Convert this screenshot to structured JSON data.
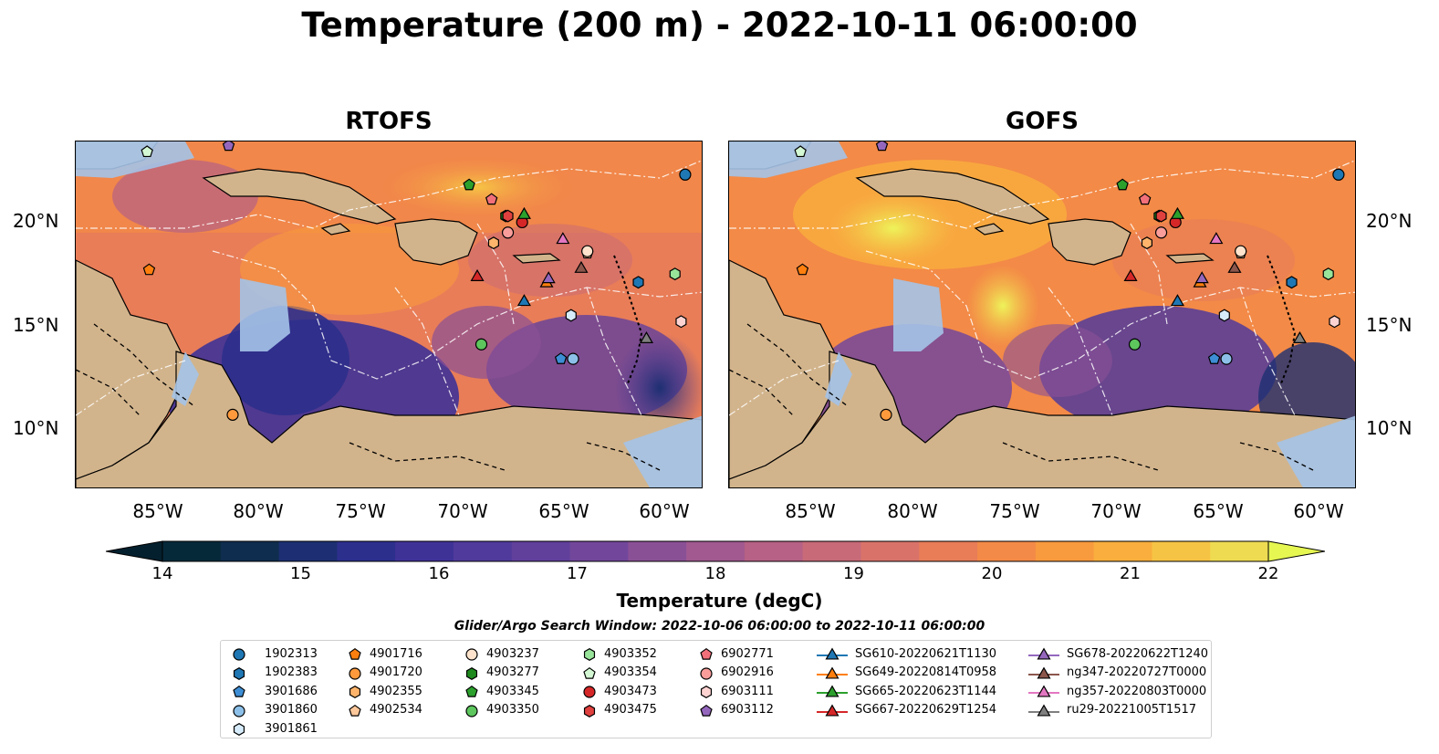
{
  "title": "Temperature (200 m) - 2022-10-11 06:00:00",
  "panels": [
    {
      "title": "RTOFS"
    },
    {
      "title": "GOFS"
    }
  ],
  "lat_ticks": [
    "20°N",
    "15°N",
    "10°N"
  ],
  "lon_ticks": [
    "85°W",
    "80°W",
    "75°W",
    "70°W",
    "65°W",
    "60°W"
  ],
  "colorbar": {
    "label": "Temperature (degC)",
    "ticks": [
      "14",
      "15",
      "16",
      "17",
      "18",
      "19",
      "20",
      "21",
      "22"
    ],
    "min": 14,
    "max": 22,
    "step": 0.5,
    "colors": [
      "#06293a",
      "#0f2d4e",
      "#1d2f72",
      "#2c2f8c",
      "#3f3297",
      "#503a9b",
      "#61409c",
      "#72479b",
      "#8a5096",
      "#a1598f",
      "#b66185",
      "#c86a78",
      "#d9736a",
      "#e87d58",
      "#f38a47",
      "#f89a3e",
      "#f9ae3d",
      "#f6c444",
      "#eedb52"
    ],
    "extend_low": "#04202e",
    "extend_high": "#e6f752"
  },
  "search_window": "Glider/Argo Search Window: 2022-10-06 06:00:00 to 2022-10-11 06:00:00",
  "legend": [
    {
      "label": "1902313",
      "marker": "circle",
      "color": "#1f77b4"
    },
    {
      "label": "1902383",
      "marker": "hexagon",
      "color": "#1f77b4"
    },
    {
      "label": "3901686",
      "marker": "pentagon",
      "color": "#3d8ed4"
    },
    {
      "label": "3901860",
      "marker": "circle",
      "color": "#8cc0e8"
    },
    {
      "label": "3901861",
      "marker": "hexagon",
      "color": "#d7ecfa"
    },
    {
      "label": "4901716",
      "marker": "pentagon",
      "color": "#ff7f0e"
    },
    {
      "label": "4901720",
      "marker": "circle",
      "color": "#ff9a3c"
    },
    {
      "label": "4902355",
      "marker": "hexagon",
      "color": "#ffb46b"
    },
    {
      "label": "4902534",
      "marker": "pentagon",
      "color": "#ffc89a"
    },
    {
      "label": "4903237",
      "marker": "circle",
      "color": "#ffe3cc"
    },
    {
      "label": "4903277",
      "marker": "hexagon",
      "color": "#1e8a1e"
    },
    {
      "label": "4903345",
      "marker": "pentagon",
      "color": "#2ca02c"
    },
    {
      "label": "4903350",
      "marker": "circle",
      "color": "#5dc65d"
    },
    {
      "label": "4903352",
      "marker": "hexagon",
      "color": "#98e49a"
    },
    {
      "label": "4903354",
      "marker": "pentagon",
      "color": "#d3f8d3"
    },
    {
      "label": "4903473",
      "marker": "circle",
      "color": "#d62728"
    },
    {
      "label": "4903475",
      "marker": "hexagon",
      "color": "#e0403e"
    },
    {
      "label": "6902771",
      "marker": "pentagon",
      "color": "#f2707a"
    },
    {
      "label": "6902916",
      "marker": "circle",
      "color": "#f99d9b"
    },
    {
      "label": "6903111",
      "marker": "hexagon",
      "color": "#fdd3d2"
    },
    {
      "label": "6903112",
      "marker": "pentagon",
      "color": "#9467bd"
    },
    {
      "label": "SG610-20220621T1130",
      "marker": "triangle",
      "color": "#1f77b4"
    },
    {
      "label": "SG649-20220814T0958",
      "marker": "triangle",
      "color": "#ff7f0e"
    },
    {
      "label": "SG665-20220623T1144",
      "marker": "triangle",
      "color": "#2ca02c"
    },
    {
      "label": "SG667-20220629T1254",
      "marker": "triangle",
      "color": "#d62728"
    },
    {
      "label": "SG678-20220622T1240",
      "marker": "triangle",
      "color": "#9467bd"
    },
    {
      "label": "ng347-20220727T0000",
      "marker": "triangle",
      "color": "#8c564b"
    },
    {
      "label": "ng357-20220803T0000",
      "marker": "triangle",
      "color": "#e377c2"
    },
    {
      "label": "ru29-20221005T1517",
      "marker": "triangle",
      "color": "#7f7f7f"
    }
  ],
  "observations": [
    {
      "label": "1902313",
      "lon": -59.1,
      "lat": 22.3
    },
    {
      "label": "1902383",
      "lon": -61.4,
      "lat": 17.1
    },
    {
      "label": "3901686",
      "lon": -65.2,
      "lat": 13.4
    },
    {
      "label": "3901860",
      "lon": -64.6,
      "lat": 13.4
    },
    {
      "label": "3901861",
      "lon": -64.7,
      "lat": 15.5
    },
    {
      "label": "4901716",
      "lon": -85.4,
      "lat": 17.7
    },
    {
      "label": "4901720",
      "lon": -81.3,
      "lat": 10.7
    },
    {
      "label": "4902355",
      "lon": -68.5,
      "lat": 19.0
    },
    {
      "label": "4902534",
      "lon": -63.9,
      "lat": 18.5
    },
    {
      "label": "4903237",
      "lon": -63.9,
      "lat": 18.6
    },
    {
      "label": "4903277",
      "lon": -67.9,
      "lat": 20.3
    },
    {
      "label": "4903345",
      "lon": -69.7,
      "lat": 21.8
    },
    {
      "label": "4903350",
      "lon": -69.1,
      "lat": 14.1
    },
    {
      "label": "4903352",
      "lon": -59.6,
      "lat": 17.5
    },
    {
      "label": "4903354",
      "lon": -85.5,
      "lat": 23.4
    },
    {
      "label": "4903473",
      "lon": -67.1,
      "lat": 20.0
    },
    {
      "label": "4903475",
      "lon": -67.8,
      "lat": 20.3
    },
    {
      "label": "6902771",
      "lon": -68.6,
      "lat": 21.1
    },
    {
      "label": "6902916",
      "lon": -67.8,
      "lat": 19.5
    },
    {
      "label": "6903111",
      "lon": -59.3,
      "lat": 15.2
    },
    {
      "label": "6903112",
      "lon": -81.5,
      "lat": 23.7
    },
    {
      "label": "SG610-20220621T1130",
      "lon": -67.0,
      "lat": 16.2
    },
    {
      "label": "SG649-20220814T0958",
      "lon": -65.9,
      "lat": 17.1
    },
    {
      "label": "SG665-20220623T1144",
      "lon": -67.0,
      "lat": 20.4
    },
    {
      "label": "SG667-20220629T1254",
      "lon": -69.3,
      "lat": 17.4
    },
    {
      "label": "SG678-20220622T1240",
      "lon": -65.8,
      "lat": 17.3
    },
    {
      "label": "ng347-20220727T0000",
      "lon": -64.2,
      "lat": 17.8
    },
    {
      "label": "ng357-20220803T0000",
      "lon": -65.1,
      "lat": 19.2
    },
    {
      "label": "ru29-20221005T1517",
      "lon": -61.0,
      "lat": 14.4
    }
  ]
}
